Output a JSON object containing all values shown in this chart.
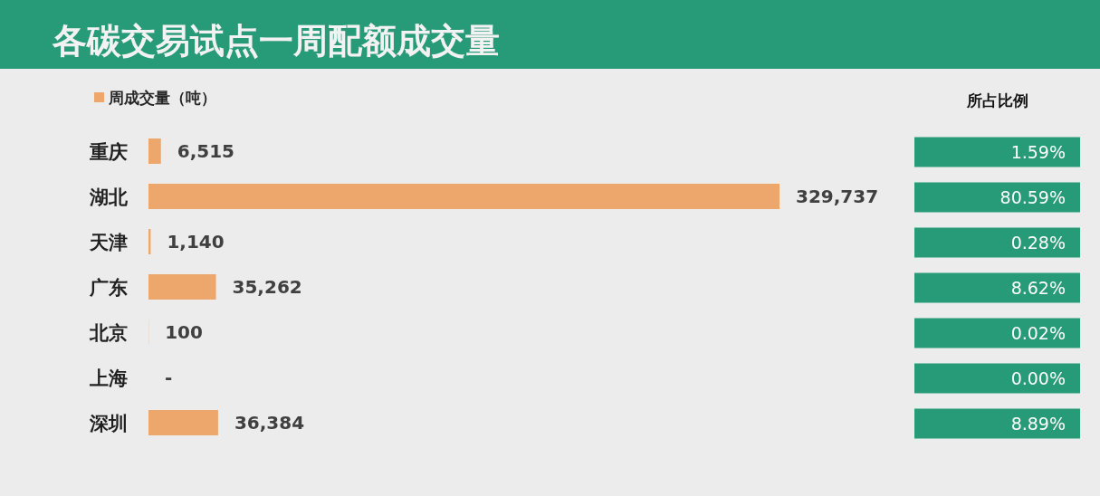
{
  "chart_data": [
    {
      "type": "bar",
      "title": "各碳交易试点一周配额成交量",
      "orientation": "horizontal",
      "categories": [
        "重庆",
        "湖北",
        "天津",
        "广东",
        "北京",
        "上海",
        "深圳"
      ],
      "series": [
        {
          "name": "周成交量（吨）",
          "color": "#eda66b",
          "values": [
            6515,
            329737,
            1140,
            35262,
            100,
            0,
            36384
          ],
          "value_labels": [
            "6,515",
            "329,737",
            "1,140",
            "35,262",
            "100",
            "-",
            "36,384"
          ]
        }
      ],
      "legend": "top left",
      "tick_labels": "y"
    },
    {
      "type": "other",
      "title": "所占比例",
      "color": "#279b78",
      "annotations": [
        "1.59%",
        "80.59%",
        "0.28%",
        "8.62%",
        "0.02%",
        "0.00%",
        "8.89%"
      ]
    }
  ]
}
